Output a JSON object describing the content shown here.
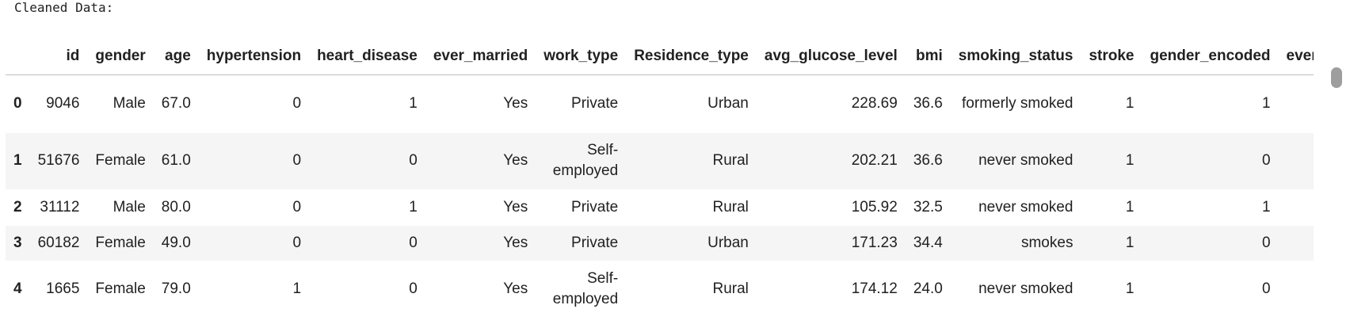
{
  "output_label": "Cleaned Data:",
  "table": {
    "columns": [
      "",
      "id",
      "gender",
      "age",
      "hypertension",
      "heart_disease",
      "ever_married",
      "work_type",
      "Residence_type",
      "avg_glucose_level",
      "bmi",
      "smoking_status",
      "stroke",
      "gender_encoded",
      "ever_m"
    ],
    "rows": [
      {
        "index": "0",
        "id": "9046",
        "gender": "Male",
        "age": "67.0",
        "hypertension": "0",
        "heart_disease": "1",
        "ever_married": "Yes",
        "work_type": "Private",
        "Residence_type": "Urban",
        "avg_glucose_level": "228.69",
        "bmi": "36.6",
        "smoking_status": "formerly smoked",
        "stroke": "1",
        "gender_encoded": "1"
      },
      {
        "index": "1",
        "id": "51676",
        "gender": "Female",
        "age": "61.0",
        "hypertension": "0",
        "heart_disease": "0",
        "ever_married": "Yes",
        "work_type": "Self-employed",
        "Residence_type": "Rural",
        "avg_glucose_level": "202.21",
        "bmi": "36.6",
        "smoking_status": "never smoked",
        "stroke": "1",
        "gender_encoded": "0"
      },
      {
        "index": "2",
        "id": "31112",
        "gender": "Male",
        "age": "80.0",
        "hypertension": "0",
        "heart_disease": "1",
        "ever_married": "Yes",
        "work_type": "Private",
        "Residence_type": "Rural",
        "avg_glucose_level": "105.92",
        "bmi": "32.5",
        "smoking_status": "never smoked",
        "stroke": "1",
        "gender_encoded": "1"
      },
      {
        "index": "3",
        "id": "60182",
        "gender": "Female",
        "age": "49.0",
        "hypertension": "0",
        "heart_disease": "0",
        "ever_married": "Yes",
        "work_type": "Private",
        "Residence_type": "Urban",
        "avg_glucose_level": "171.23",
        "bmi": "34.4",
        "smoking_status": "smokes",
        "stroke": "1",
        "gender_encoded": "0"
      },
      {
        "index": "4",
        "id": "1665",
        "gender": "Female",
        "age": "79.0",
        "hypertension": "1",
        "heart_disease": "0",
        "ever_married": "Yes",
        "work_type": "Self-employed",
        "Residence_type": "Rural",
        "avg_glucose_level": "174.12",
        "bmi": "24.0",
        "smoking_status": "never smoked",
        "stroke": "1",
        "gender_encoded": "0"
      }
    ]
  }
}
